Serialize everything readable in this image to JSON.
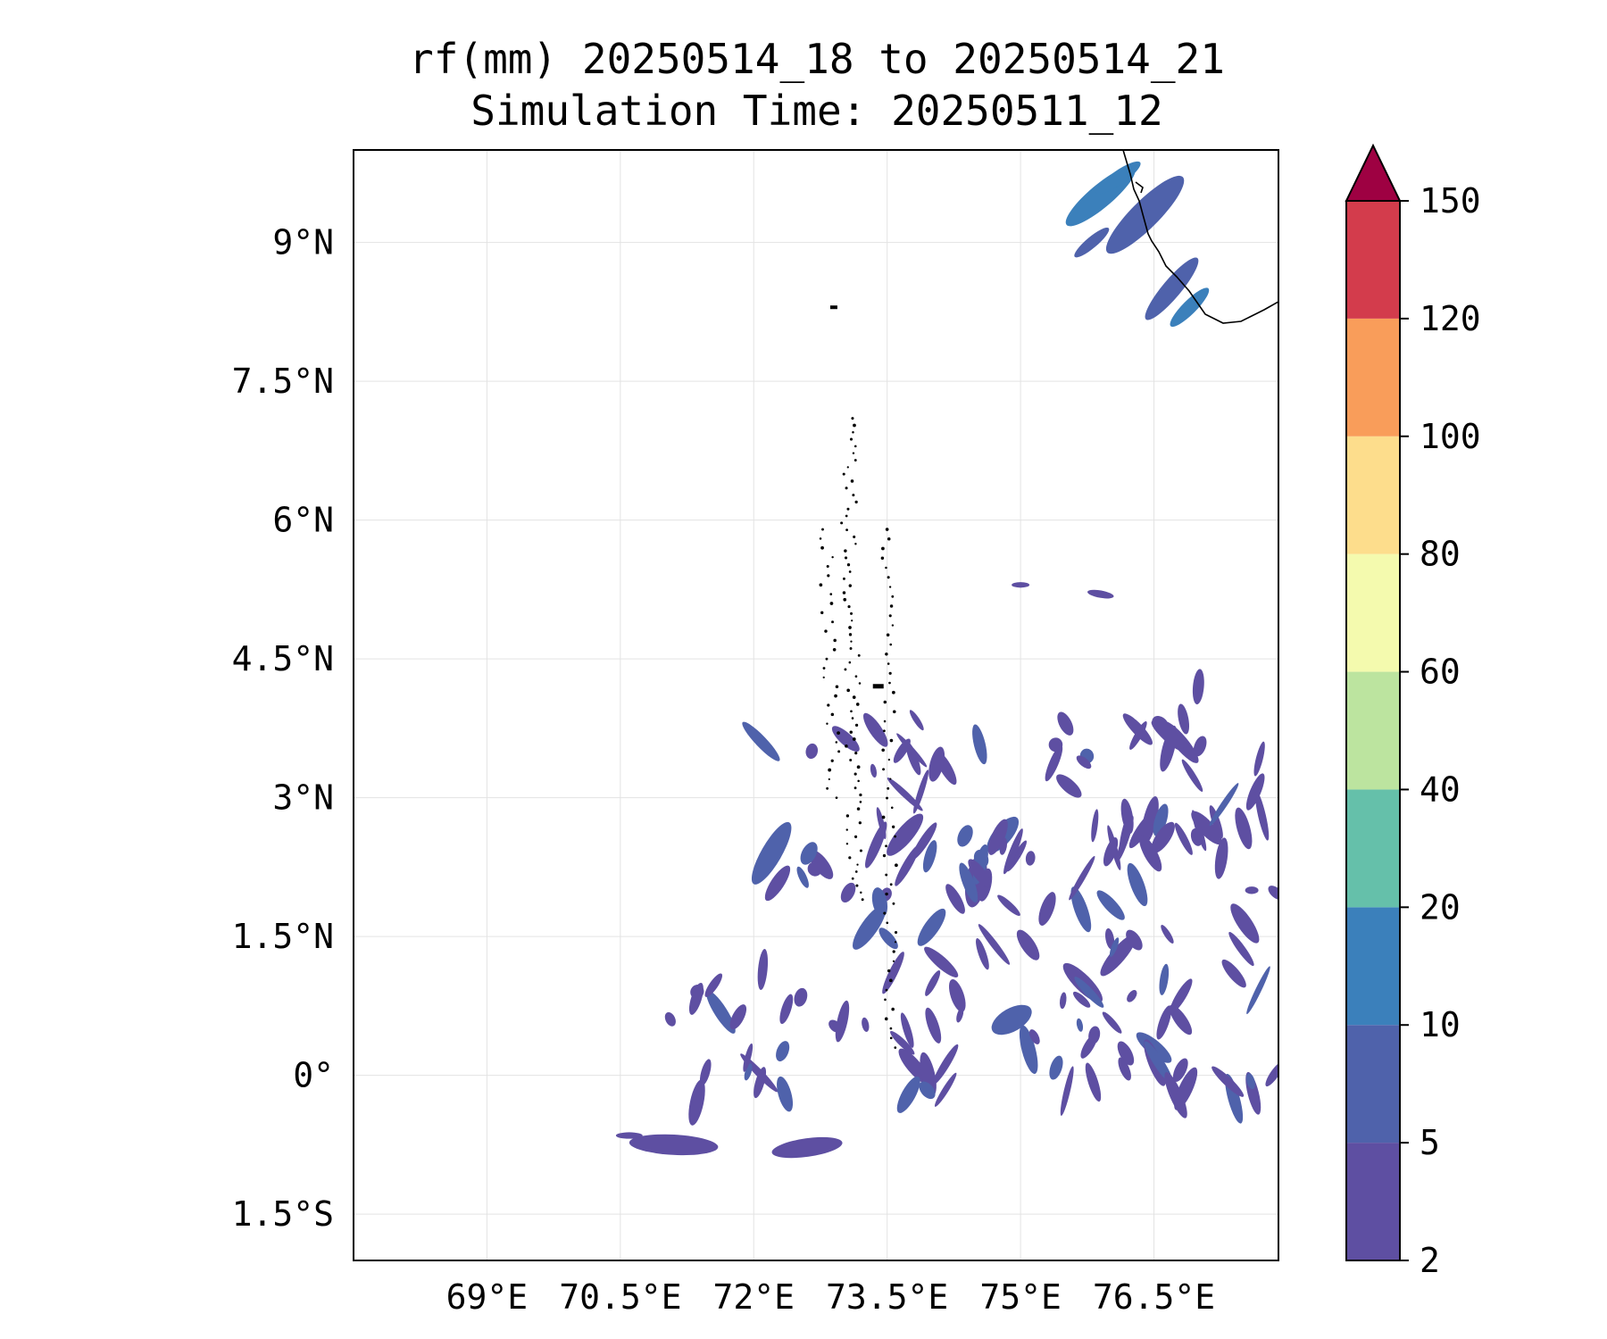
{
  "figure": {
    "title_line1": "rf(mm) 20250514_18 to 20250514_21",
    "title_line2": "Simulation Time: 20250511_12"
  },
  "map": {
    "lon_range": [
      67.5,
      77.9
    ],
    "lat_range": [
      -2.0,
      10.0
    ],
    "lon_ticks": [
      69,
      70.5,
      72,
      73.5,
      75,
      76.5
    ],
    "lon_tick_labels": [
      "69°E",
      "70.5°E",
      "72°E",
      "73.5°E",
      "75°E",
      "76.5°E"
    ],
    "lat_ticks": [
      -1.5,
      0,
      1.5,
      3,
      4.5,
      6,
      7.5,
      9
    ],
    "lat_tick_labels": [
      "1.5°S",
      "0°",
      "1.5°N",
      "3°N",
      "4.5°N",
      "6°N",
      "7.5°N",
      "9°N"
    ],
    "gridlines": true,
    "features": [
      "coastline",
      "islands"
    ]
  },
  "colorbar": {
    "levels": [
      2,
      5,
      10,
      20,
      40,
      60,
      80,
      100,
      120,
      150
    ],
    "tick_labels": [
      "2",
      "5",
      "10",
      "20",
      "40",
      "60",
      "80",
      "100",
      "120",
      "150"
    ],
    "colors": [
      "#5e4fa2",
      "#4f62ab",
      "#3b80bb",
      "#65c0aa",
      "#bce49f",
      "#f4faae",
      "#fddd8c",
      "#f99d5a",
      "#d33c4c",
      "#9e0142"
    ],
    "extend": "max"
  },
  "chart_data": {
    "type": "heatmap",
    "variable": "rf(mm)",
    "title": "rf(mm) 20250514_18 to 20250514_21",
    "subtitle": "Simulation Time: 20250511_12",
    "xlabel": "",
    "ylabel": "",
    "xlim": [
      67.5,
      77.9
    ],
    "ylim": [
      -2.0,
      10.0
    ],
    "rain_cells": [
      {
        "lon": 76.4,
        "lat": 9.3,
        "len": 1.2,
        "wid": 0.3,
        "ang": -45,
        "level": 1
      },
      {
        "lon": 75.9,
        "lat": 9.5,
        "len": 1.0,
        "wid": 0.25,
        "ang": -40,
        "level": 2
      },
      {
        "lon": 76.7,
        "lat": 8.5,
        "len": 0.9,
        "wid": 0.2,
        "ang": -50,
        "level": 1
      },
      {
        "lon": 76.9,
        "lat": 8.3,
        "len": 0.6,
        "wid": 0.15,
        "ang": -45,
        "level": 2
      },
      {
        "lon": 75.8,
        "lat": 9.0,
        "len": 0.5,
        "wid": 0.12,
        "ang": -40,
        "level": 1
      },
      {
        "lon": 76.1,
        "lat": 9.7,
        "len": 0.6,
        "wid": 0.15,
        "ang": -35,
        "level": 2
      },
      {
        "lon": 71.1,
        "lat": -0.75,
        "len": 1.0,
        "wid": 0.22,
        "ang": 3,
        "level": 0
      },
      {
        "lon": 72.6,
        "lat": -0.78,
        "len": 0.8,
        "wid": 0.2,
        "ang": -8,
        "level": 0
      },
      {
        "lon": 70.6,
        "lat": -0.65,
        "len": 0.3,
        "wid": 0.07,
        "ang": 0,
        "level": 0
      },
      {
        "lon": 72.2,
        "lat": 2.4,
        "len": 0.8,
        "wid": 0.22,
        "ang": -60,
        "level": 1
      },
      {
        "lon": 73.3,
        "lat": 1.6,
        "len": 0.6,
        "wid": 0.18,
        "ang": -55,
        "level": 1
      },
      {
        "lon": 74.0,
        "lat": 1.6,
        "len": 0.5,
        "wid": 0.16,
        "ang": -55,
        "level": 1
      },
      {
        "lon": 74.8,
        "lat": 2.6,
        "len": 0.5,
        "wid": 0.2,
        "ang": -50,
        "level": 1
      },
      {
        "lon": 74.5,
        "lat": 2.1,
        "len": 0.6,
        "wid": 0.22,
        "ang": -80,
        "level": 0
      },
      {
        "lon": 73.7,
        "lat": 2.6,
        "len": 0.6,
        "wid": 0.18,
        "ang": -50,
        "level": 0
      },
      {
        "lon": 73.8,
        "lat": 0.1,
        "len": 0.5,
        "wid": 0.15,
        "ang": 50,
        "level": 0
      },
      {
        "lon": 74.9,
        "lat": 0.6,
        "len": 0.5,
        "wid": 0.25,
        "ang": -30,
        "level": 1
      },
      {
        "lon": 76.8,
        "lat": 3.6,
        "len": 0.6,
        "wid": 0.15,
        "ang": 50,
        "level": 0
      },
      {
        "lon": 77.0,
        "lat": 4.2,
        "len": 0.4,
        "wid": 0.12,
        "ang": -85,
        "level": 0
      },
      {
        "lon": 76.1,
        "lat": 1.3,
        "len": 0.6,
        "wid": 0.16,
        "ang": -50,
        "level": 0
      },
      {
        "lon": 75.7,
        "lat": 1.0,
        "len": 0.6,
        "wid": 0.18,
        "ang": 45,
        "level": 0
      },
      {
        "lon": 76.5,
        "lat": 0.3,
        "len": 0.5,
        "wid": 0.16,
        "ang": 40,
        "level": 1
      },
      {
        "lon": 77.4,
        "lat": 1.1,
        "len": 0.4,
        "wid": 0.12,
        "ang": 50,
        "level": 0
      },
      {
        "lon": 75.3,
        "lat": 1.8,
        "len": 0.4,
        "wid": 0.14,
        "ang": -70,
        "level": 0
      },
      {
        "lon": 76.8,
        "lat": 0.6,
        "len": 0.4,
        "wid": 0.13,
        "ang": 55,
        "level": 0
      },
      {
        "lon": 76.2,
        "lat": 2.8,
        "len": 0.4,
        "wid": 0.12,
        "ang": 80,
        "level": 0
      },
      {
        "lon": 75.0,
        "lat": 5.3,
        "len": 0.2,
        "wid": 0.06,
        "ang": 0,
        "level": 0
      },
      {
        "lon": 75.9,
        "lat": 5.2,
        "len": 0.3,
        "wid": 0.08,
        "ang": 10,
        "level": 0
      },
      {
        "lon": 77.6,
        "lat": 2.0,
        "len": 0.15,
        "wid": 0.08,
        "ang": 0,
        "level": 0
      }
    ],
    "legend": "colorbar-right"
  }
}
